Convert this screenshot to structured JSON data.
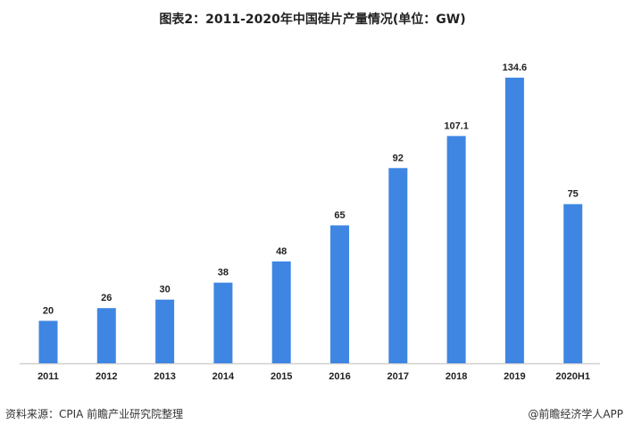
{
  "chart_data": {
    "type": "bar",
    "title": "图表2：2011-2020年中国硅片产量情况(单位：GW)",
    "categories": [
      "2011",
      "2012",
      "2013",
      "2014",
      "2015",
      "2016",
      "2017",
      "2018",
      "2019",
      "2020H1"
    ],
    "values": [
      20,
      26,
      30,
      38,
      48,
      65,
      92,
      107.1,
      134.6,
      75
    ],
    "xlabel": "",
    "ylabel": "",
    "ylim": [
      0,
      134.6
    ],
    "grid": false,
    "bar_color": "#3f86e3"
  },
  "footer": {
    "source": "资料来源：CPIA 前瞻产业研究院整理",
    "credit": "@前瞻经济学人APP"
  }
}
